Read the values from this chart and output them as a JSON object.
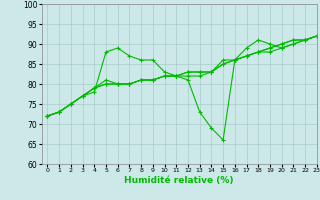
{
  "title": "",
  "xlabel": "Humidité relative (%)",
  "ylabel": "",
  "xlim": [
    -0.5,
    23
  ],
  "ylim": [
    60,
    100
  ],
  "yticks": [
    60,
    65,
    70,
    75,
    80,
    85,
    90,
    95,
    100
  ],
  "xticks": [
    0,
    1,
    2,
    3,
    4,
    5,
    6,
    7,
    8,
    9,
    10,
    11,
    12,
    13,
    14,
    15,
    16,
    17,
    18,
    19,
    20,
    21,
    22,
    23
  ],
  "background_color": "#cce8e8",
  "grid_color": "#aacaca",
  "line_color": "#00bb00",
  "lines": [
    [
      72,
      73,
      75,
      77,
      78,
      88,
      89,
      87,
      86,
      86,
      83,
      82,
      81,
      73,
      69,
      66,
      86,
      89,
      91,
      90,
      89,
      90,
      91,
      92
    ],
    [
      72,
      73,
      75,
      77,
      79,
      81,
      80,
      80,
      81,
      81,
      82,
      82,
      82,
      82,
      83,
      86,
      86,
      87,
      88,
      89,
      90,
      91,
      91,
      92
    ],
    [
      72,
      73,
      75,
      77,
      79,
      80,
      80,
      80,
      81,
      81,
      82,
      82,
      83,
      83,
      83,
      85,
      86,
      87,
      88,
      89,
      90,
      91,
      91,
      92
    ],
    [
      72,
      73,
      75,
      77,
      79,
      80,
      80,
      80,
      81,
      81,
      82,
      82,
      83,
      83,
      83,
      85,
      86,
      87,
      88,
      88,
      89,
      90,
      91,
      92
    ]
  ]
}
